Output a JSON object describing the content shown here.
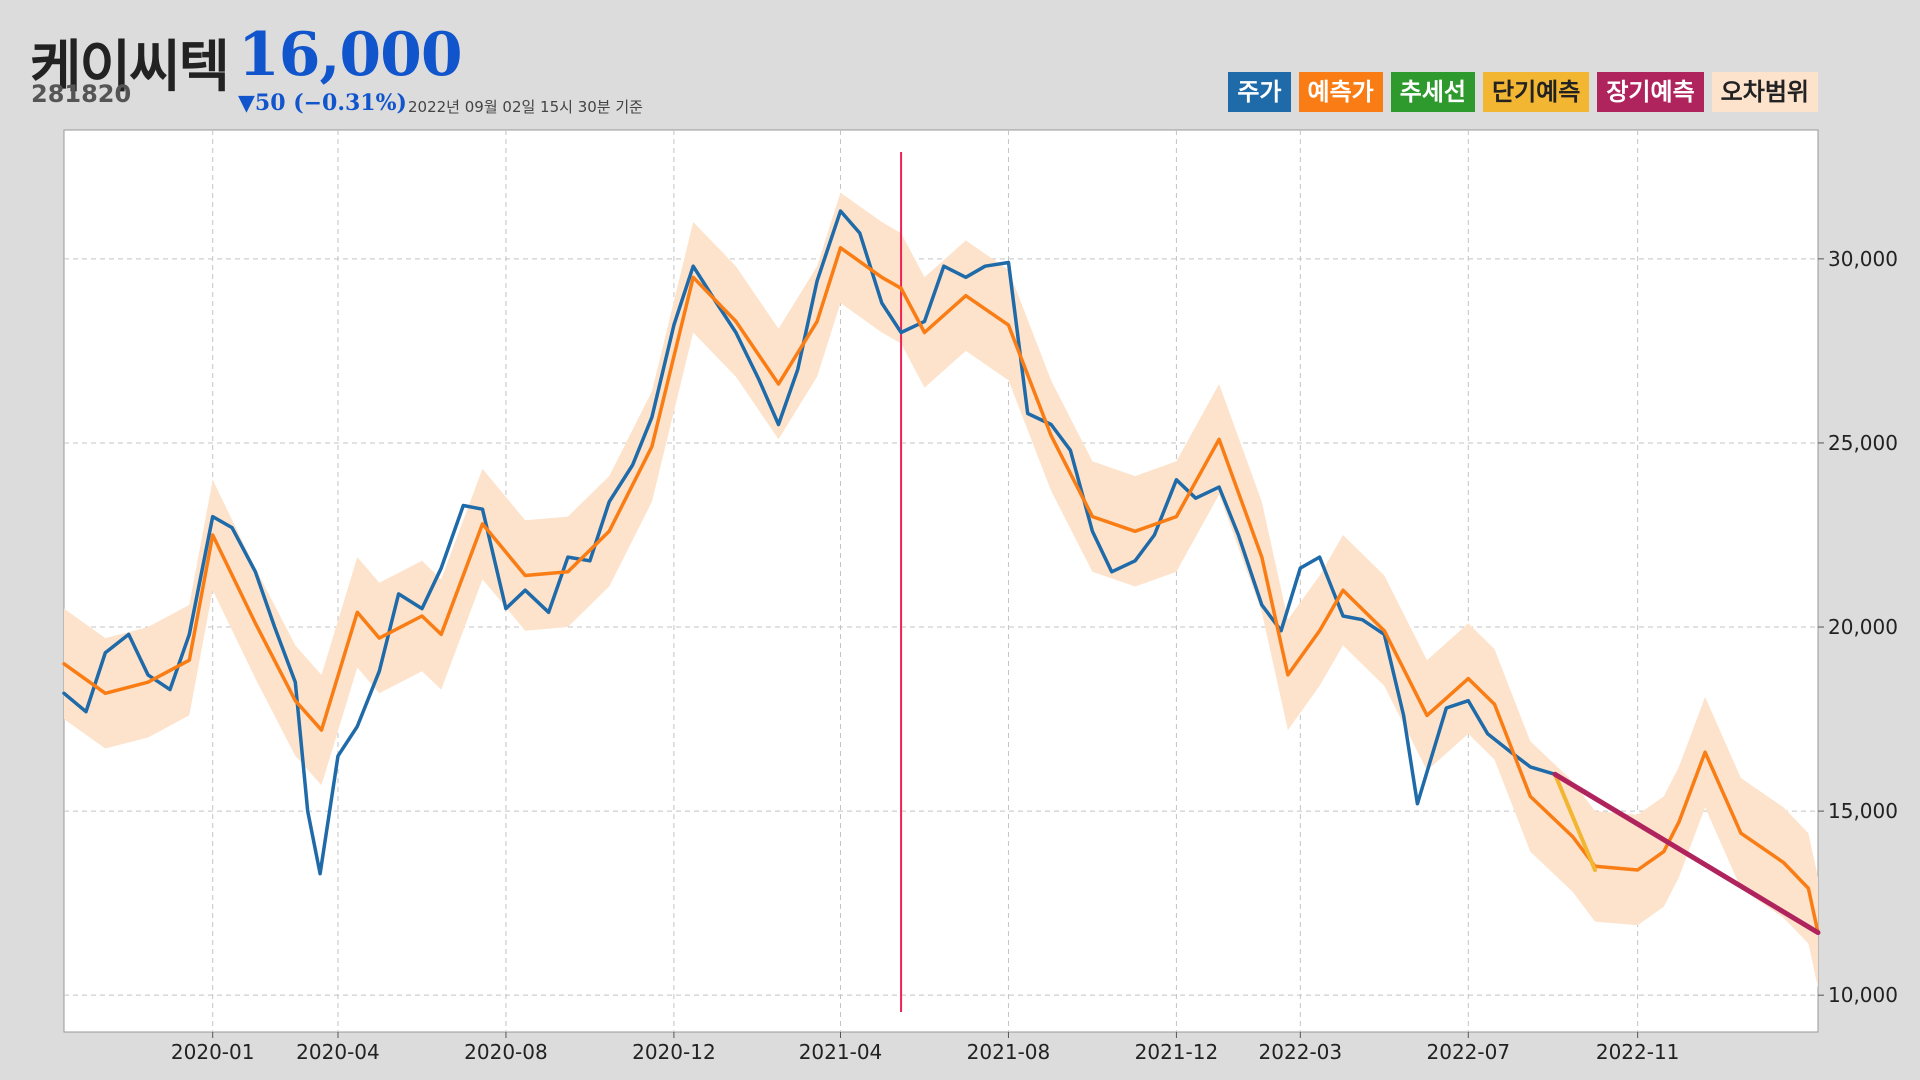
{
  "header": {
    "name": "케이씨텍",
    "code": "281820",
    "price": "16,000",
    "change": "▼50 (−0.31%)",
    "timestamp": "2022년 09월 02일 15시 30분 기준"
  },
  "legend": [
    {
      "label": "주가",
      "color": "#1f6aa8",
      "text_color": "#ffffff"
    },
    {
      "label": "예측가",
      "color": "#f97d14",
      "text_color": "#ffffff"
    },
    {
      "label": "추세선",
      "color": "#2e9a2e",
      "text_color": "#ffffff"
    },
    {
      "label": "단기예측",
      "color": "#f2b632",
      "text_color": "#222222"
    },
    {
      "label": "장기예측",
      "color": "#b0245e",
      "text_color": "#ffffff"
    },
    {
      "label": "오차범위",
      "color": "#fde3cc",
      "text_color": "#222222"
    }
  ],
  "chart_data": {
    "type": "line",
    "x_axis": {
      "type": "date",
      "range": [
        "2019-09-15",
        "2023-03-12"
      ],
      "tick_labels": [
        "2020-01",
        "2020-04",
        "2020-08",
        "2020-12",
        "2021-04",
        "2021-08",
        "2021-12",
        "2022-03",
        "2022-07",
        "2022-11"
      ],
      "tick_dates": [
        "2020-01-01",
        "2020-04-01",
        "2020-08-01",
        "2020-12-01",
        "2021-04-01",
        "2021-08-01",
        "2021-12-01",
        "2022-03-01",
        "2022-07-01",
        "2022-11-01"
      ]
    },
    "y_axis": {
      "range": [
        9000,
        33500
      ],
      "ticks": [
        10000,
        15000,
        20000,
        25000,
        30000
      ],
      "tick_labels": [
        "10,000",
        "15,000",
        "20,000",
        "25,000",
        "30,000"
      ],
      "position": "right"
    },
    "grid": true,
    "vertical_marker": {
      "date": "2021-05-15",
      "color": "#ee2255"
    },
    "series": [
      {
        "name": "주가",
        "color": "#1f6aa8",
        "points": [
          [
            "2019-09-15",
            18200
          ],
          [
            "2019-10-01",
            17700
          ],
          [
            "2019-10-15",
            19300
          ],
          [
            "2019-11-01",
            19800
          ],
          [
            "2019-11-15",
            18700
          ],
          [
            "2019-12-01",
            18300
          ],
          [
            "2019-12-15",
            19800
          ],
          [
            "2020-01-01",
            23000
          ],
          [
            "2020-01-15",
            22700
          ],
          [
            "2020-02-01",
            21500
          ],
          [
            "2020-02-15",
            20000
          ],
          [
            "2020-03-01",
            18500
          ],
          [
            "2020-03-10",
            15000
          ],
          [
            "2020-03-19",
            13300
          ],
          [
            "2020-04-01",
            16500
          ],
          [
            "2020-04-15",
            17300
          ],
          [
            "2020-05-01",
            18800
          ],
          [
            "2020-05-15",
            20900
          ],
          [
            "2020-06-01",
            20500
          ],
          [
            "2020-06-15",
            21600
          ],
          [
            "2020-07-01",
            23300
          ],
          [
            "2020-07-15",
            23200
          ],
          [
            "2020-08-01",
            20500
          ],
          [
            "2020-08-15",
            21000
          ],
          [
            "2020-09-01",
            20400
          ],
          [
            "2020-09-15",
            21900
          ],
          [
            "2020-10-01",
            21800
          ],
          [
            "2020-10-15",
            23400
          ],
          [
            "2020-11-01",
            24400
          ],
          [
            "2020-11-15",
            25700
          ],
          [
            "2020-12-01",
            28200
          ],
          [
            "2020-12-15",
            29800
          ],
          [
            "2021-01-01",
            28800
          ],
          [
            "2021-01-15",
            28000
          ],
          [
            "2021-02-01",
            26700
          ],
          [
            "2021-02-15",
            25500
          ],
          [
            "2021-03-01",
            27000
          ],
          [
            "2021-03-15",
            29400
          ],
          [
            "2021-04-01",
            31300
          ],
          [
            "2021-04-15",
            30700
          ],
          [
            "2021-05-01",
            28800
          ],
          [
            "2021-05-15",
            28000
          ],
          [
            "2021-06-01",
            28300
          ],
          [
            "2021-06-15",
            29800
          ],
          [
            "2021-07-01",
            29500
          ],
          [
            "2021-07-15",
            29800
          ],
          [
            "2021-08-01",
            29900
          ],
          [
            "2021-08-15",
            25800
          ],
          [
            "2021-09-01",
            25500
          ],
          [
            "2021-09-15",
            24800
          ],
          [
            "2021-10-01",
            22600
          ],
          [
            "2021-10-15",
            21500
          ],
          [
            "2021-11-01",
            21800
          ],
          [
            "2021-11-15",
            22500
          ],
          [
            "2021-12-01",
            24000
          ],
          [
            "2021-12-15",
            23500
          ],
          [
            "2022-01-01",
            23800
          ],
          [
            "2022-01-15",
            22500
          ],
          [
            "2022-02-01",
            20600
          ],
          [
            "2022-02-15",
            19900
          ],
          [
            "2022-03-01",
            21600
          ],
          [
            "2022-03-15",
            21900
          ],
          [
            "2022-04-01",
            20300
          ],
          [
            "2022-04-15",
            20200
          ],
          [
            "2022-05-01",
            19800
          ],
          [
            "2022-05-15",
            17600
          ],
          [
            "2022-05-25",
            15200
          ],
          [
            "2022-06-15",
            17800
          ],
          [
            "2022-07-01",
            18000
          ],
          [
            "2022-07-15",
            17100
          ],
          [
            "2022-08-01",
            16600
          ],
          [
            "2022-08-15",
            16200
          ],
          [
            "2022-09-02",
            16000
          ]
        ]
      },
      {
        "name": "예측가",
        "color": "#f97d14",
        "points": [
          [
            "2019-09-15",
            19000
          ],
          [
            "2019-10-15",
            18200
          ],
          [
            "2019-11-15",
            18500
          ],
          [
            "2019-12-15",
            19100
          ],
          [
            "2020-01-01",
            22500
          ],
          [
            "2020-02-01",
            20100
          ],
          [
            "2020-03-01",
            18000
          ],
          [
            "2020-03-20",
            17200
          ],
          [
            "2020-04-15",
            20400
          ],
          [
            "2020-05-01",
            19700
          ],
          [
            "2020-06-01",
            20300
          ],
          [
            "2020-06-15",
            19800
          ],
          [
            "2020-07-15",
            22800
          ],
          [
            "2020-08-15",
            21400
          ],
          [
            "2020-09-15",
            21500
          ],
          [
            "2020-10-15",
            22600
          ],
          [
            "2020-11-15",
            24900
          ],
          [
            "2020-12-15",
            29500
          ],
          [
            "2021-01-15",
            28300
          ],
          [
            "2021-02-15",
            26600
          ],
          [
            "2021-03-15",
            28300
          ],
          [
            "2021-04-01",
            30300
          ],
          [
            "2021-05-01",
            29500
          ],
          [
            "2021-05-15",
            29200
          ],
          [
            "2021-06-01",
            28000
          ],
          [
            "2021-07-01",
            29000
          ],
          [
            "2021-08-01",
            28200
          ],
          [
            "2021-09-01",
            25200
          ],
          [
            "2021-10-01",
            23000
          ],
          [
            "2021-11-01",
            22600
          ],
          [
            "2021-12-01",
            23000
          ],
          [
            "2022-01-01",
            25100
          ],
          [
            "2022-02-01",
            21900
          ],
          [
            "2022-02-20",
            18700
          ],
          [
            "2022-03-15",
            19900
          ],
          [
            "2022-04-01",
            21000
          ],
          [
            "2022-05-01",
            19900
          ],
          [
            "2022-06-01",
            17600
          ],
          [
            "2022-07-01",
            18600
          ],
          [
            "2022-07-20",
            17900
          ],
          [
            "2022-08-15",
            15400
          ],
          [
            "2022-09-15",
            14300
          ],
          [
            "2022-10-01",
            13500
          ],
          [
            "2022-11-01",
            13400
          ],
          [
            "2022-11-20",
            13900
          ],
          [
            "2022-12-01",
            14700
          ],
          [
            "2022-12-20",
            16600
          ],
          [
            "2023-01-15",
            14400
          ],
          [
            "2023-02-15",
            13600
          ],
          [
            "2023-03-05",
            12900
          ],
          [
            "2023-03-12",
            11700
          ]
        ]
      },
      {
        "name": "단기예측",
        "color": "#f2b632",
        "points": [
          [
            "2022-09-02",
            16000
          ],
          [
            "2022-10-01",
            13400
          ]
        ]
      },
      {
        "name": "장기예측",
        "color": "#b0245e",
        "points": [
          [
            "2022-09-02",
            16000
          ],
          [
            "2023-03-12",
            11700
          ]
        ]
      },
      {
        "name": "오차범위",
        "color": "#fde3cc",
        "type": "band",
        "band_width": 1500
      }
    ]
  }
}
